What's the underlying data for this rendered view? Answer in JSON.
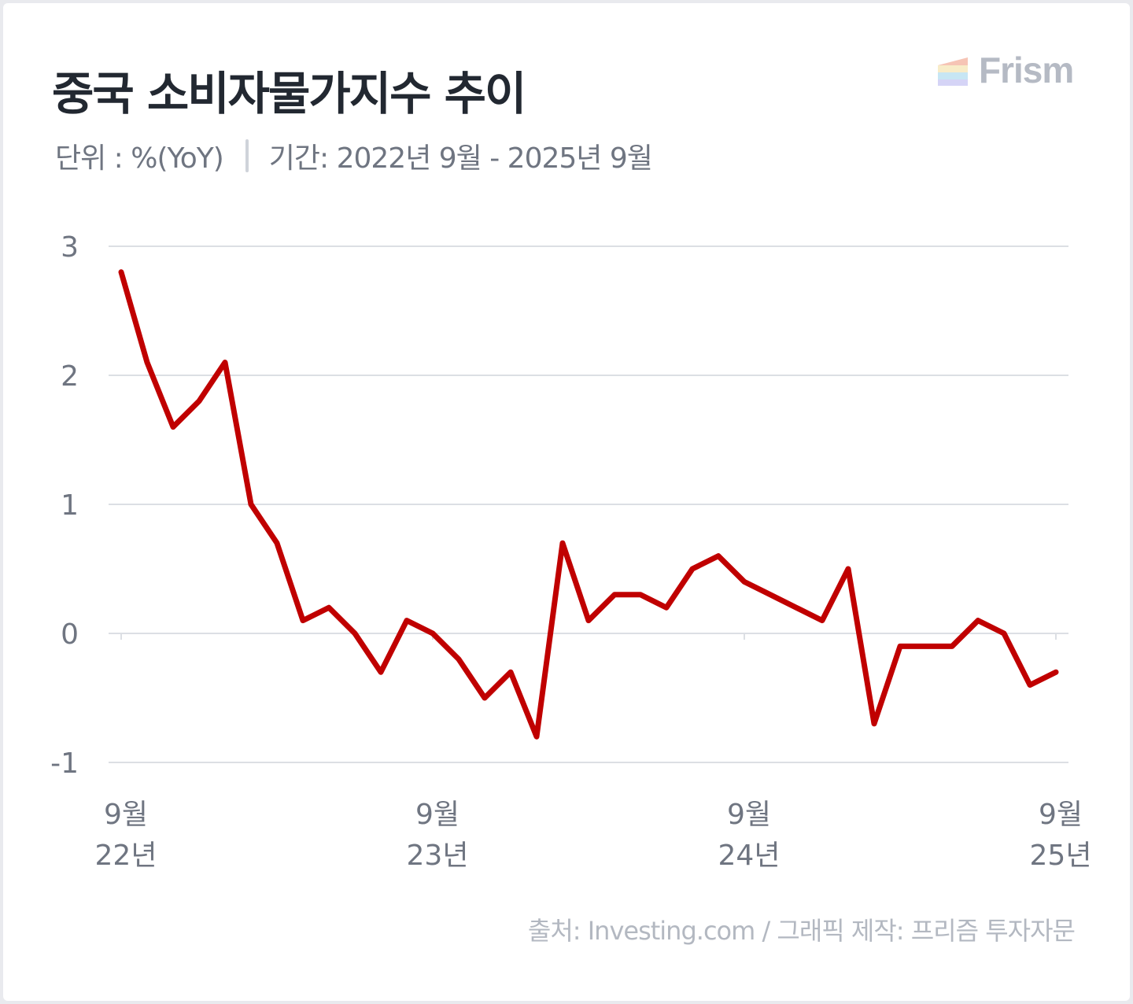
{
  "header": {
    "title": "중국 소비자물가지수 추이",
    "unit": "단위 : %(YoY)",
    "period": "기간: 2022년 9월 - 2025년 9월"
  },
  "brand": {
    "name": "Frism"
  },
  "footer": {
    "source": "출처: Investing.com / 그래픽 제작: 프리즘 투자자문"
  },
  "colors": {
    "line": "#c00000",
    "grid": "#dcdfe4",
    "tick_text": "#6f7581"
  },
  "chart_data": {
    "type": "line",
    "ylim": [
      -1,
      3
    ],
    "yticks": [
      "3",
      "2",
      "1",
      "0",
      "-1"
    ],
    "grid": true,
    "xticks": [
      {
        "month": "9월",
        "year": "22년",
        "index": 0
      },
      {
        "month": "9월",
        "year": "23년",
        "index": 12
      },
      {
        "month": "9월",
        "year": "24년",
        "index": 24
      },
      {
        "month": "9월",
        "year": "25년",
        "index": 36
      }
    ],
    "series": [
      {
        "values": [
          2.8,
          2.1,
          1.6,
          1.8,
          2.1,
          1.0,
          0.7,
          0.1,
          0.2,
          0.0,
          -0.3,
          0.1,
          0.0,
          -0.2,
          -0.5,
          -0.3,
          -0.8,
          0.7,
          0.1,
          0.3,
          0.3,
          0.2,
          0.5,
          0.6,
          0.4,
          0.3,
          0.2,
          0.1,
          0.5,
          -0.7,
          -0.1,
          -0.1,
          -0.1,
          0.1,
          0.0,
          -0.4,
          -0.3
        ]
      }
    ]
  }
}
